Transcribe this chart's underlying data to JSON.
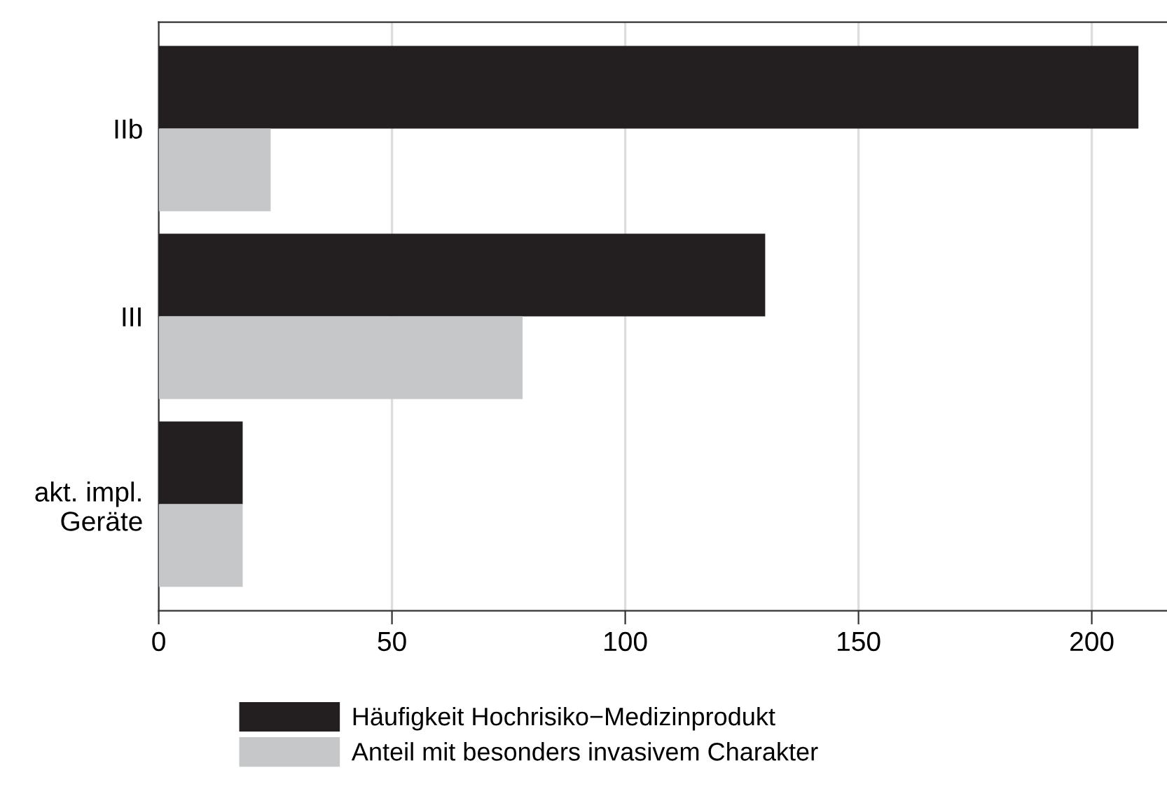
{
  "chart_data": {
    "type": "bar",
    "orientation": "horizontal",
    "categories": [
      "IIb",
      "III",
      "akt. impl.\nGeräte"
    ],
    "series": [
      {
        "name": "Häufigkeit Hochrisiko−Medizinprodukt",
        "color": "#231f20",
        "values": [
          210,
          130,
          18
        ]
      },
      {
        "name": "Anteil mit besonders invasivem Charakter",
        "color": "#c6c7c8",
        "values": [
          24,
          78,
          18
        ]
      }
    ],
    "xlim": [
      0,
      216
    ],
    "xticks": [
      0,
      50,
      100,
      150,
      200
    ],
    "grid": "x",
    "legend": "bottom"
  }
}
